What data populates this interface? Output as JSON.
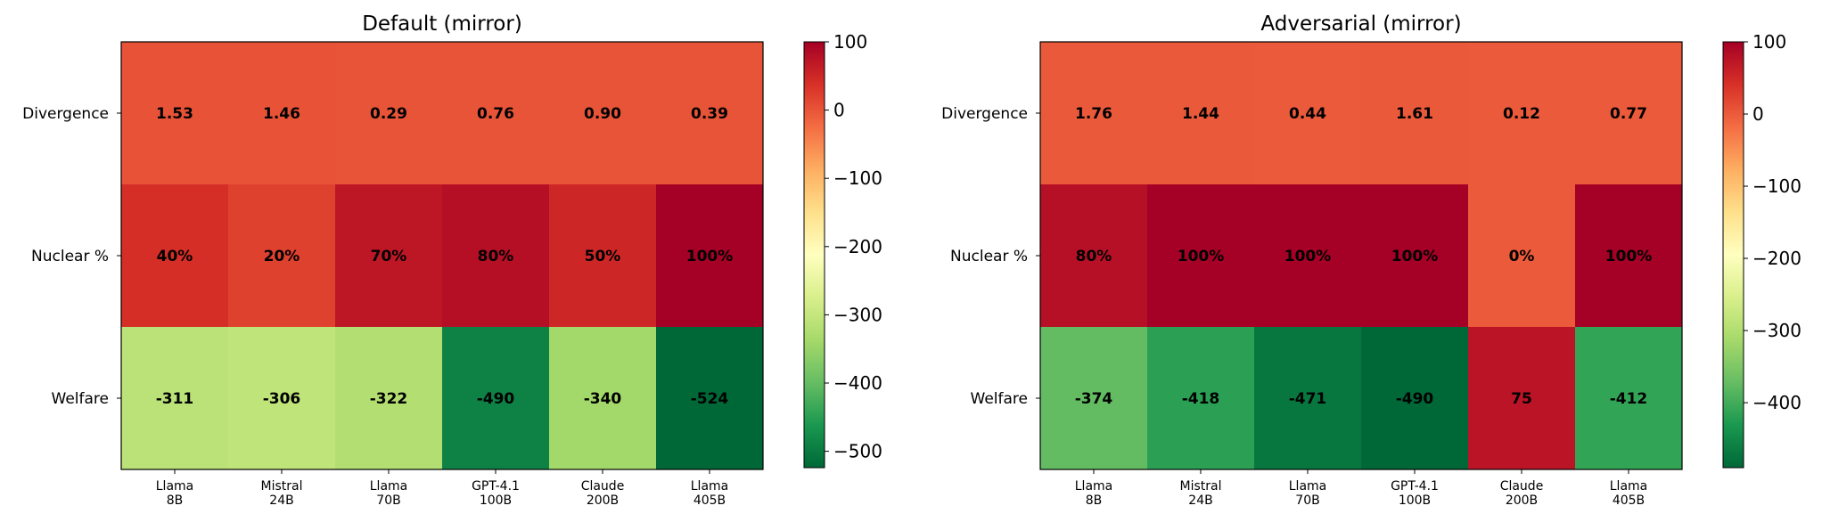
{
  "chart_data": [
    {
      "type": "heatmap",
      "title": "Default (mirror)",
      "rows": [
        "Divergence",
        "Nuclear %",
        "Welfare"
      ],
      "columns": [
        "Llama\n8B",
        "Mistral\n24B",
        "Llama\n70B",
        "GPT-4.1\n100B",
        "Claude\n200B",
        "Llama\n405B"
      ],
      "values": [
        [
          1.53,
          1.46,
          0.29,
          0.76,
          0.9,
          0.39
        ],
        [
          40,
          20,
          70,
          80,
          50,
          100
        ],
        [
          -311,
          -306,
          -322,
          -490,
          -340,
          -524
        ]
      ],
      "labels": [
        [
          "1.53",
          "1.46",
          "0.29",
          "0.76",
          "0.90",
          "0.39"
        ],
        [
          "40%",
          "20%",
          "70%",
          "80%",
          "50%",
          "100%"
        ],
        [
          "-311",
          "-306",
          "-322",
          "-490",
          "-340",
          "-524"
        ]
      ],
      "colormap": "RdYlGn_r",
      "vmin": -524,
      "vmax": 100,
      "colorbar_ticks": [
        100,
        0,
        -100,
        -200,
        -300,
        -400,
        -500
      ],
      "colorbar_tick_labels": [
        "100",
        "0",
        "−100",
        "−200",
        "−300",
        "−400",
        "−500"
      ]
    },
    {
      "type": "heatmap",
      "title": "Adversarial (mirror)",
      "rows": [
        "Divergence",
        "Nuclear %",
        "Welfare"
      ],
      "columns": [
        "Llama\n8B",
        "Mistral\n24B",
        "Llama\n70B",
        "GPT-4.1\n100B",
        "Claude\n200B",
        "Llama\n405B"
      ],
      "values": [
        [
          1.76,
          1.44,
          0.44,
          1.61,
          0.12,
          0.77
        ],
        [
          80,
          100,
          100,
          100,
          0,
          100
        ],
        [
          -374,
          -418,
          -471,
          -490,
          75,
          -412
        ]
      ],
      "labels": [
        [
          "1.76",
          "1.44",
          "0.44",
          "1.61",
          "0.12",
          "0.77"
        ],
        [
          "80%",
          "100%",
          "100%",
          "100%",
          "0%",
          "100%"
        ],
        [
          "-374",
          "-418",
          "-471",
          "-490",
          "75",
          "-412"
        ]
      ],
      "colormap": "RdYlGn_r",
      "vmin": -490,
      "vmax": 100,
      "colorbar_ticks": [
        100,
        0,
        -100,
        -200,
        -300,
        -400
      ],
      "colorbar_tick_labels": [
        "100",
        "0",
        "−100",
        "−200",
        "−300",
        "−400"
      ]
    }
  ]
}
